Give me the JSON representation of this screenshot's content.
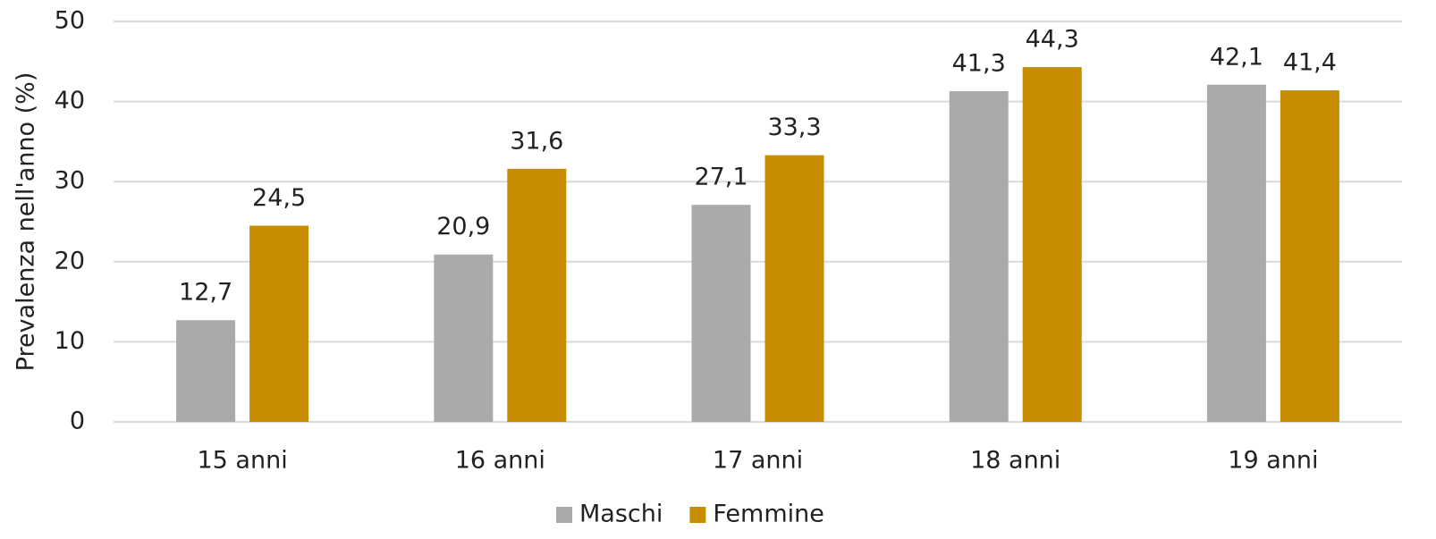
{
  "chart_data": {
    "type": "bar",
    "y_axis_label": "Prevalenza nell'anno (%)",
    "categories": [
      "15 anni",
      "16 anni",
      "17 anni",
      "18 anni",
      "19 anni"
    ],
    "series": [
      {
        "name": "Maschi",
        "color": "#a9aaa9",
        "values": [
          12.7,
          20.9,
          27.1,
          41.3,
          42.1
        ],
        "value_labels": [
          "12,7",
          "20,9",
          "27,1",
          "41,3",
          "42,1"
        ]
      },
      {
        "name": "Femmine",
        "color": "#c78c00",
        "values": [
          24.5,
          31.6,
          33.3,
          44.3,
          41.4
        ],
        "value_labels": [
          "24,5",
          "31,6",
          "33,3",
          "44,3",
          "41,4"
        ]
      }
    ],
    "ylim": [
      0,
      50
    ],
    "yticks": [
      0,
      10,
      20,
      30,
      40,
      50
    ],
    "grid": true,
    "legend": "bottom"
  }
}
